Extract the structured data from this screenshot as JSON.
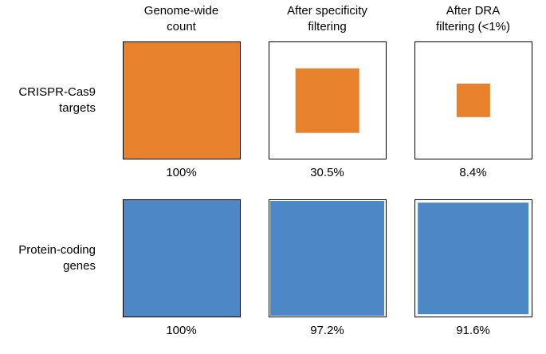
{
  "column_headers": [
    {
      "label": "Genome-wide\ncount"
    },
    {
      "label": "After specificity\nfiltering"
    },
    {
      "label": "After DRA\nfiltering (<1%)"
    }
  ],
  "row_labels": [
    {
      "label": "CRISPR-Cas9\ntargets"
    },
    {
      "label": "Protein-coding\ngenes"
    }
  ],
  "colors": {
    "crispr_orange": "#E8812C",
    "genes_blue": "#4E87C6",
    "outline": "#000000",
    "background": "#FFFFFF"
  },
  "chart_data": {
    "type": "proportional_area_squares",
    "title": "",
    "columns": [
      "Genome-wide count",
      "After specificity filtering",
      "After DRA filtering (<1%)"
    ],
    "rows": [
      {
        "label": "CRISPR-Cas9 targets",
        "fill_color": "#E8812C",
        "values_percent": [
          100,
          30.5,
          8.4
        ],
        "value_labels": [
          "100%",
          "30.5%",
          "8.4%"
        ]
      },
      {
        "label": "Protein-coding genes",
        "fill_color": "#4E87C6",
        "values_percent": [
          100,
          97.2,
          91.6
        ],
        "value_labels": [
          "100%",
          "97.2%",
          "91.6%"
        ]
      }
    ],
    "encoding": "inner square area proportional to percent of genome-wide count",
    "legend": "none",
    "grid": "off"
  }
}
